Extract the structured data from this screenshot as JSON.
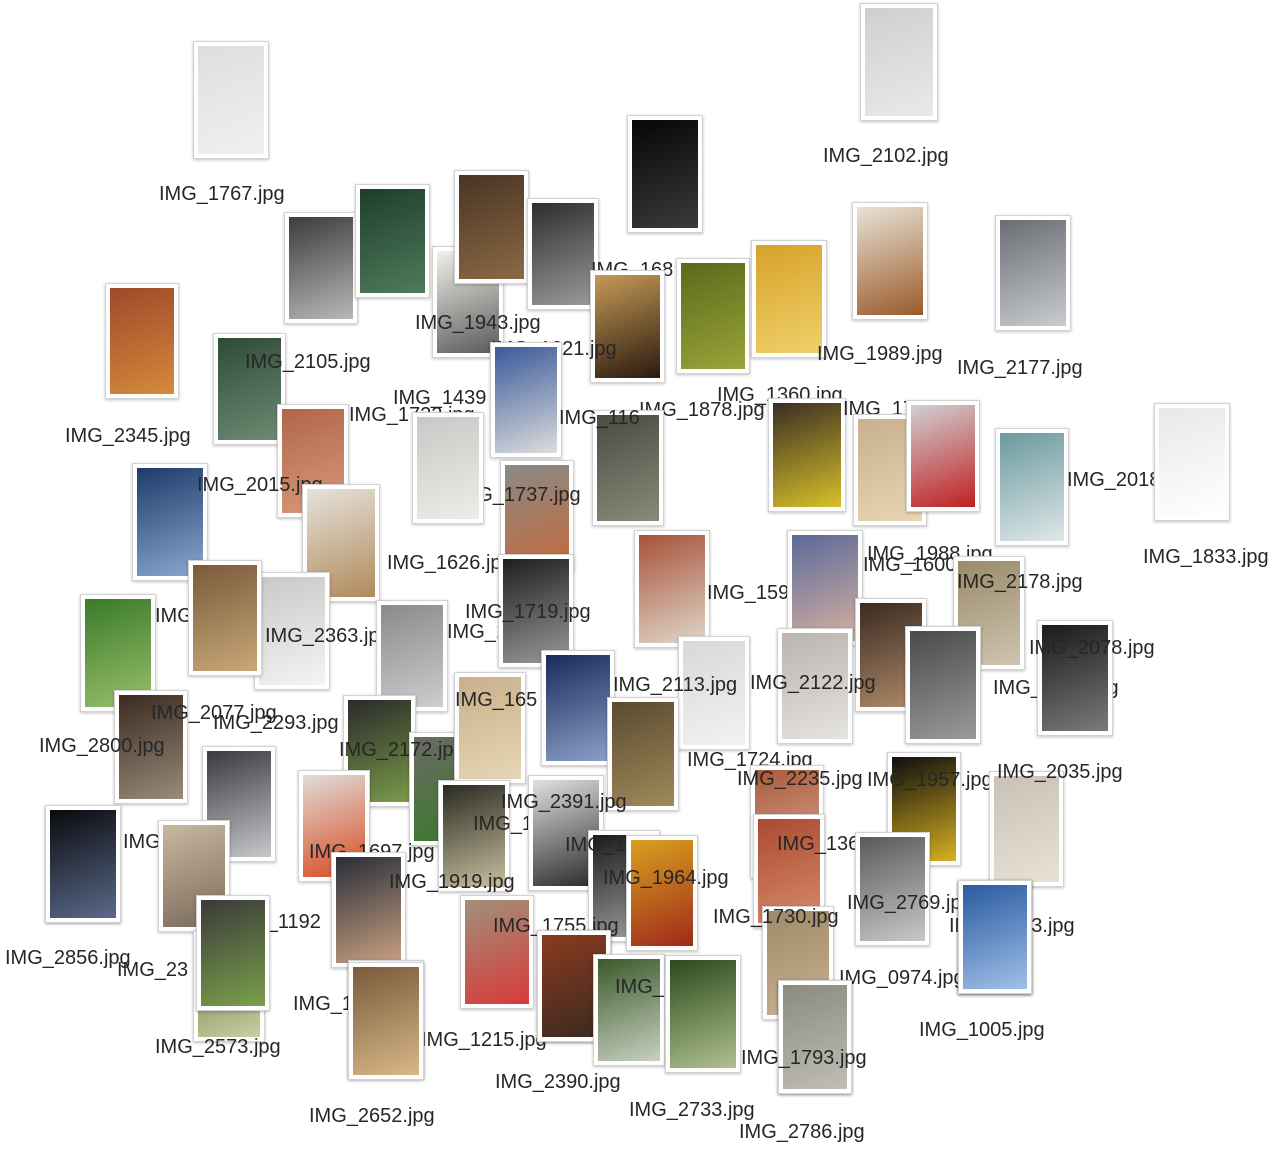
{
  "items": [
    {
      "id": "IMG_1767",
      "label": "IMG_1767.jpg",
      "colors": [
        "#dedede",
        "#f0f0f0"
      ]
    },
    {
      "id": "IMG_2102",
      "label": "IMG_2102.jpg",
      "colors": [
        "#cfcfcd",
        "#e9e9e7"
      ]
    },
    {
      "id": "IMG_2325_tire",
      "label": "",
      "colors": [
        "#3c3c3c",
        "#b8b8b8"
      ]
    },
    {
      "id": "IMG_green_door",
      "label": "",
      "colors": [
        "#1d3f2a",
        "#4f7a5c"
      ]
    },
    {
      "id": "IMG_1943",
      "label": "IMG_1943.jpg",
      "colors": [
        "#f2f0ea",
        "#5a5a5a"
      ]
    },
    {
      "id": "IMG_stick",
      "label": "",
      "colors": [
        "#4a3424",
        "#8a6a44"
      ]
    },
    {
      "id": "IMG_brick_black",
      "label": "",
      "colors": [
        "#2e2e2e",
        "#9a9a9a"
      ]
    },
    {
      "id": "IMG_1681",
      "label": "IMG_168",
      "colors": [
        "#060606",
        "#3a3a3a"
      ]
    },
    {
      "id": "IMG_2345",
      "label": "IMG_2345.jpg",
      "colors": [
        "#9c4a2a",
        "#d48a3a"
      ]
    },
    {
      "id": "IMG_2105",
      "label": "IMG_2105.jpg",
      "colors": [
        "#2f4a38",
        "#6f8a72"
      ]
    },
    {
      "id": "IMG_1621",
      "label": "IMG_1621.jpg",
      "colors": [
        "#c59a55",
        "#2a1a10"
      ]
    },
    {
      "id": "IMG_1878",
      "label": "IMG_1878.jpg",
      "colors": [
        "#5a6a1a",
        "#9aa43a"
      ]
    },
    {
      "id": "IMG_1360",
      "label": "IMG_1360.jpg",
      "colors": [
        "#d6a22a",
        "#f0d06a"
      ]
    },
    {
      "id": "IMG_1989",
      "label": "IMG_1989.jpg",
      "colors": [
        "#e8e2d6",
        "#9a5a2a"
      ]
    },
    {
      "id": "IMG_2177",
      "label": "IMG_2177.jpg",
      "colors": [
        "#6a6e74",
        "#c8ccd0"
      ]
    },
    {
      "id": "IMG_1439",
      "label": "IMG_1439",
      "colors": [
        "#3a5a9a",
        "#dcdcdc"
      ]
    },
    {
      "id": "IMG_1722",
      "label": "IMG_1722.jpg",
      "colors": [
        "#b0654a",
        "#d89a7a"
      ]
    },
    {
      "id": "IMG_116",
      "label": "IMG_116",
      "colors": [
        "#4a4a42",
        "#8a8a7a"
      ]
    },
    {
      "id": "IMG_1763",
      "label": "IMG_1763.jpg",
      "colors": [
        "#3a2e22",
        "#d8c02a"
      ]
    },
    {
      "id": "IMG_2015",
      "label": "IMG_2015.jpg",
      "colors": [
        "#1e3a6a",
        "#8aa8d0"
      ]
    },
    {
      "id": "IMG_1737",
      "label": "IMG_1737.jpg",
      "colors": [
        "#8a8a88",
        "#c46a3a"
      ]
    },
    {
      "id": "IMG_brick_tan",
      "label": "",
      "colors": [
        "#c8b08a",
        "#e6d6b6"
      ]
    },
    {
      "id": "IMG_taillight",
      "label": "",
      "colors": [
        "#d0d0d4",
        "#c02020"
      ]
    },
    {
      "id": "IMG_2018",
      "label": "IMG_2018.jpg",
      "colors": [
        "#6a9aa0",
        "#dfe7e8"
      ]
    },
    {
      "id": "IMG_1833",
      "label": "IMG_1833.jpg",
      "colors": [
        "#e8e8ea",
        "#ffffff"
      ]
    },
    {
      "id": "IMG_1626",
      "label": "IMG_1626.jpg",
      "colors": [
        "#e6e2dc",
        "#b08a5a"
      ]
    },
    {
      "id": "IMG_1597",
      "label": "IMG_1597.jpg",
      "colors": [
        "#a6523a",
        "#e0d6c8"
      ]
    },
    {
      "id": "IMG_1988",
      "label": "IMG_1988.jpg",
      "colors": [
        "#5a6a9a",
        "#d8b0a0"
      ]
    },
    {
      "id": "IMG_1600",
      "label": "IMG_1600.jpg",
      "colors": [
        "#3a2a20",
        "#b08a6a"
      ]
    },
    {
      "id": "IMG_2178",
      "label": "IMG_2178.jpg",
      "colors": [
        "#9a8a6a",
        "#cfc4b0"
      ]
    },
    {
      "id": "IMG_2192",
      "label": "IMG_2192.jpg",
      "colors": [
        "#3a7a2a",
        "#9ac06a"
      ]
    },
    {
      "id": "IMG_2363",
      "label": "IMG_2363.jpg",
      "colors": [
        "#c8c8c6",
        "#f4f4f2"
      ]
    },
    {
      "id": "IMG_1963",
      "label": "IMG_1963.jpg",
      "colors": [
        "#8a8a8a",
        "#cdcdcd"
      ]
    },
    {
      "id": "IMG_1719",
      "label": "IMG_1719.jpg",
      "colors": [
        "#1e1e1e",
        "#9a9a9a"
      ]
    },
    {
      "id": "IMG_2113",
      "label": "IMG_2113.jpg",
      "colors": [
        "#d8d8d8",
        "#f2f2f2"
      ]
    },
    {
      "id": "IMG_2122",
      "label": "IMG_2122.jpg",
      "colors": [
        "#b8b4b0",
        "#e6e4e0"
      ]
    },
    {
      "id": "IMG_2235_top",
      "label": "IMG_2235.jpg",
      "colors": [
        "#4a4a4a",
        "#9a9a9a"
      ]
    },
    {
      "id": "IMG_2078",
      "label": "IMG_2078.jpg",
      "colors": [
        "#1a1a1a",
        "#7a7a7a"
      ]
    },
    {
      "id": "IMG_2800",
      "label": "IMG_2800.jpg",
      "colors": [
        "#3a2a20",
        "#9a8a7a"
      ]
    },
    {
      "id": "IMG_2077",
      "label": "IMG_2077.jpg",
      "colors": [
        "#7a5a3a",
        "#c8a878"
      ]
    },
    {
      "id": "IMG_2293",
      "label": "IMG_2293.jpg",
      "colors": [
        "#2a2a2a",
        "#7a9a4a"
      ]
    },
    {
      "id": "IMG_2172",
      "label": "IMG_2172.jpg",
      "colors": [
        "#6a6a64",
        "#3a7a2a"
      ]
    },
    {
      "id": "IMG_1654",
      "label": "IMG_165",
      "colors": [
        "#c8b08a",
        "#e6d6b6"
      ]
    },
    {
      "id": "IMG_grille",
      "label": "",
      "colors": [
        "#1a2a5a",
        "#8aa0c8"
      ]
    },
    {
      "id": "IMG_1724",
      "label": "IMG_1724.jpg",
      "colors": [
        "#5a4a30",
        "#a08a5a"
      ]
    },
    {
      "id": "IMG_2235",
      "label": "IMG_2235.jpg",
      "colors": [
        "#a85a3a",
        "#e0b09a"
      ]
    },
    {
      "id": "IMG_1957",
      "label": "IMG_1957.jpg",
      "colors": [
        "#0e0e0e",
        "#d8b020"
      ]
    },
    {
      "id": "IMG_2035",
      "label": "IMG_2035.jpg",
      "colors": [
        "#c8c2b6",
        "#e8e2d6"
      ]
    },
    {
      "id": "IMG_1900",
      "label": "IMG_190",
      "colors": [
        "#0e0e14",
        "#4a5a7a"
      ]
    },
    {
      "id": "IMG_wheel",
      "label": "",
      "colors": [
        "#3a3a3e",
        "#c8c8cc"
      ]
    },
    {
      "id": "IMG_1697",
      "label": "IMG_1697.jpg",
      "colors": [
        "#e0dcd8",
        "#d84a20"
      ]
    },
    {
      "id": "IMG_1596",
      "label": "IMG_1596.jpg",
      "colors": [
        "#2a2a20",
        "#c8c0a0"
      ]
    },
    {
      "id": "IMG_2391",
      "label": "IMG_2391.jpg",
      "colors": [
        "#e0e0e0",
        "#2a2a2a"
      ]
    },
    {
      "id": "IMG_1919",
      "label": "IMG_1919.jpg",
      "colors": [
        "#2a2e3a",
        "#c8a080"
      ]
    },
    {
      "id": "IMG_1870",
      "label": "IMG_1870.jpg",
      "colors": [
        "#1a1a1a",
        "#a0a0a0"
      ]
    },
    {
      "id": "IMG_1362",
      "label": "IMG_1362",
      "colors": [
        "#aa4a30",
        "#d88a6a"
      ]
    },
    {
      "id": "IMG_1964",
      "label": "IMG_1964.jpg",
      "colors": [
        "#d8a020",
        "#a02a1a"
      ]
    },
    {
      "id": "IMG_2769",
      "label": "IMG_2769.jpg",
      "colors": [
        "#5a5a5a",
        "#c8c8c8"
      ]
    },
    {
      "id": "IMG_1192",
      "label": "IMG_1192",
      "colors": [
        "#c8b8a0",
        "#7a6a5a"
      ]
    },
    {
      "id": "IMG_1755",
      "label": "IMG_1755.jpg",
      "colors": [
        "#a0907a",
        "#d83a3a"
      ]
    },
    {
      "id": "IMG_2856",
      "label": "IMG_2856.jpg",
      "colors": [
        "#0a0a0e",
        "#5a6a8a"
      ]
    },
    {
      "id": "IMG_2300",
      "label": "IMG_23",
      "colors": [
        "#5a6a3a",
        "#c8d0a0"
      ]
    },
    {
      "id": "IMG_2573",
      "label": "IMG_2573.jpg",
      "colors": [
        "#3a3a3a",
        "#7aa04a"
      ]
    },
    {
      "id": "IMG_1690",
      "label": "IMG_1690.jpg",
      "colors": [
        "#8a7a6a",
        "#c8b8a0"
      ]
    },
    {
      "id": "IMG_1215",
      "label": "IMG_1215.jpg",
      "colors": [
        "#6a3a20",
        "#d8a070"
      ]
    },
    {
      "id": "IMG_2390",
      "label": "IMG_2390.jpg",
      "colors": [
        "#8a3a20",
        "#3a2a20"
      ]
    },
    {
      "id": "IMG_2032",
      "label": "IMG_2032",
      "colors": [
        "#3a5a2a",
        "#c8d0c0"
      ]
    },
    {
      "id": "IMG_2733",
      "label": "IMG_2733.jpg",
      "colors": [
        "#2a4a1a",
        "#b0c090"
      ]
    },
    {
      "id": "IMG_1730",
      "label": "IMG_1730.jpg",
      "colors": [
        "#a08a6a",
        "#c8b090"
      ]
    },
    {
      "id": "IMG_2652",
      "label": "IMG_2652.jpg",
      "colors": [
        "#7a5a3a",
        "#d8b888"
      ]
    },
    {
      "id": "IMG_0974",
      "label": "IMG_0974.jpg",
      "colors": [
        "#4a6a9a",
        "#1a2a4a"
      ]
    },
    {
      "id": "IMG_2233",
      "label": "IMG_2233.jpg",
      "colors": [
        "#3a6ab0",
        "#8ab0e0"
      ]
    },
    {
      "id": "IMG_1005",
      "label": "IMG_1005.jpg",
      "colors": [
        "#2a5aa0",
        "#a0c0e8"
      ]
    },
    {
      "id": "IMG_2786",
      "label": "IMG_2786.jpg",
      "colors": [
        "#7a7a74",
        "#b8b4aa"
      ]
    },
    {
      "id": "IMG_1793",
      "label": "IMG_1793.jpg",
      "colors": [
        "#8a8a80",
        "#c0beb4"
      ]
    },
    {
      "id": "IMG_1143",
      "label": "IMG_1143",
      "colors": [
        "#c8c8c6",
        "#ecece8"
      ]
    }
  ]
}
